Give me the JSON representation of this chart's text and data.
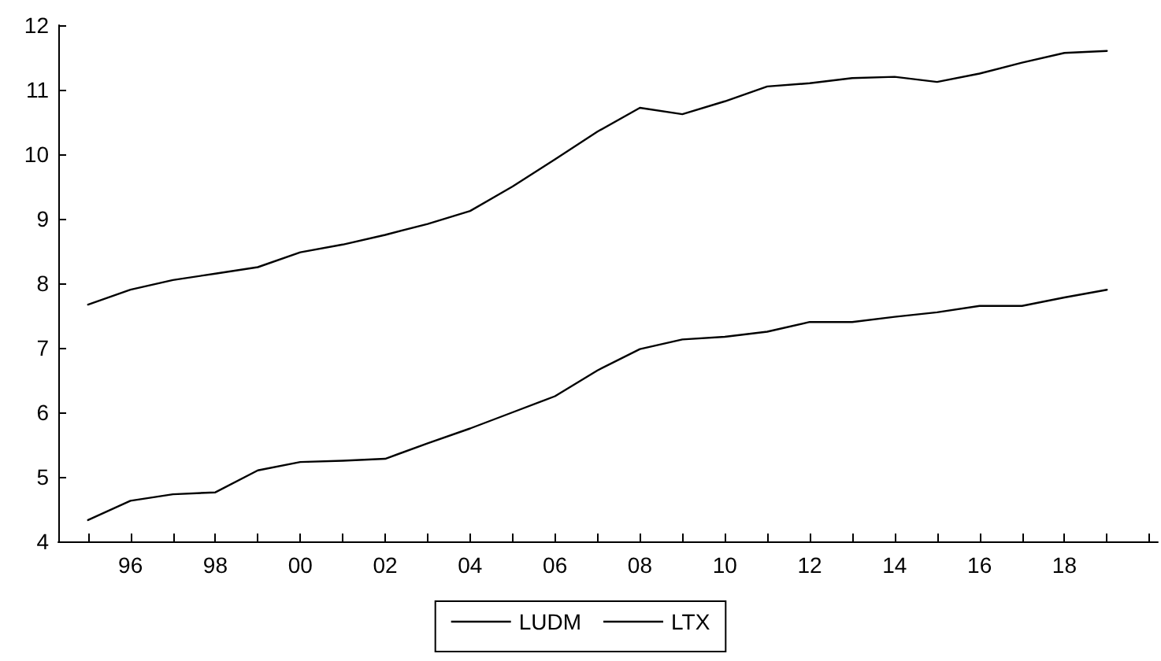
{
  "chart_data": {
    "type": "line",
    "x": [
      1995,
      1996,
      1997,
      1998,
      1999,
      2000,
      2001,
      2002,
      2003,
      2004,
      2005,
      2006,
      2007,
      2008,
      2009,
      2010,
      2011,
      2012,
      2013,
      2014,
      2015,
      2016,
      2017,
      2018,
      2019
    ],
    "series": [
      {
        "name": "LUDM",
        "color": "#000000",
        "values": [
          4.33,
          4.63,
          4.73,
          4.76,
          5.1,
          5.23,
          5.25,
          5.28,
          5.52,
          5.75,
          6.0,
          6.25,
          6.65,
          6.98,
          7.13,
          7.17,
          7.25,
          7.4,
          7.4,
          7.48,
          7.55,
          7.65,
          7.65,
          7.78,
          7.9
        ]
      },
      {
        "name": "LTX",
        "color": "#000000",
        "values": [
          7.67,
          7.9,
          8.05,
          8.15,
          8.25,
          8.48,
          8.6,
          8.75,
          8.92,
          9.12,
          9.5,
          9.92,
          10.35,
          10.72,
          10.62,
          10.82,
          11.05,
          11.1,
          11.18,
          11.2,
          11.12,
          11.25,
          11.42,
          11.57,
          11.6
        ]
      }
    ],
    "xlim": [
      1994.3,
      2020.2
    ],
    "xticks": [
      {
        "value": 1995,
        "label": null
      },
      {
        "value": 1996,
        "label": "96"
      },
      {
        "value": 1997,
        "label": null
      },
      {
        "value": 1998,
        "label": "98"
      },
      {
        "value": 1999,
        "label": null
      },
      {
        "value": 2000,
        "label": "00"
      },
      {
        "value": 2001,
        "label": null
      },
      {
        "value": 2002,
        "label": "02"
      },
      {
        "value": 2003,
        "label": null
      },
      {
        "value": 2004,
        "label": "04"
      },
      {
        "value": 2005,
        "label": null
      },
      {
        "value": 2006,
        "label": "06"
      },
      {
        "value": 2007,
        "label": null
      },
      {
        "value": 2008,
        "label": "08"
      },
      {
        "value": 2009,
        "label": null
      },
      {
        "value": 2010,
        "label": "10"
      },
      {
        "value": 2011,
        "label": null
      },
      {
        "value": 2012,
        "label": "12"
      },
      {
        "value": 2013,
        "label": null
      },
      {
        "value": 2014,
        "label": "14"
      },
      {
        "value": 2015,
        "label": null
      },
      {
        "value": 2016,
        "label": "16"
      },
      {
        "value": 2017,
        "label": null
      },
      {
        "value": 2018,
        "label": "18"
      },
      {
        "value": 2019,
        "label": null
      },
      {
        "value": 2020,
        "label": null
      }
    ],
    "ylim": [
      4,
      12
    ],
    "yticks": [
      4,
      5,
      6,
      7,
      8,
      9,
      10,
      11,
      12
    ],
    "legend": "bottom",
    "grid": false,
    "marker": "none",
    "line_style": "solid"
  }
}
